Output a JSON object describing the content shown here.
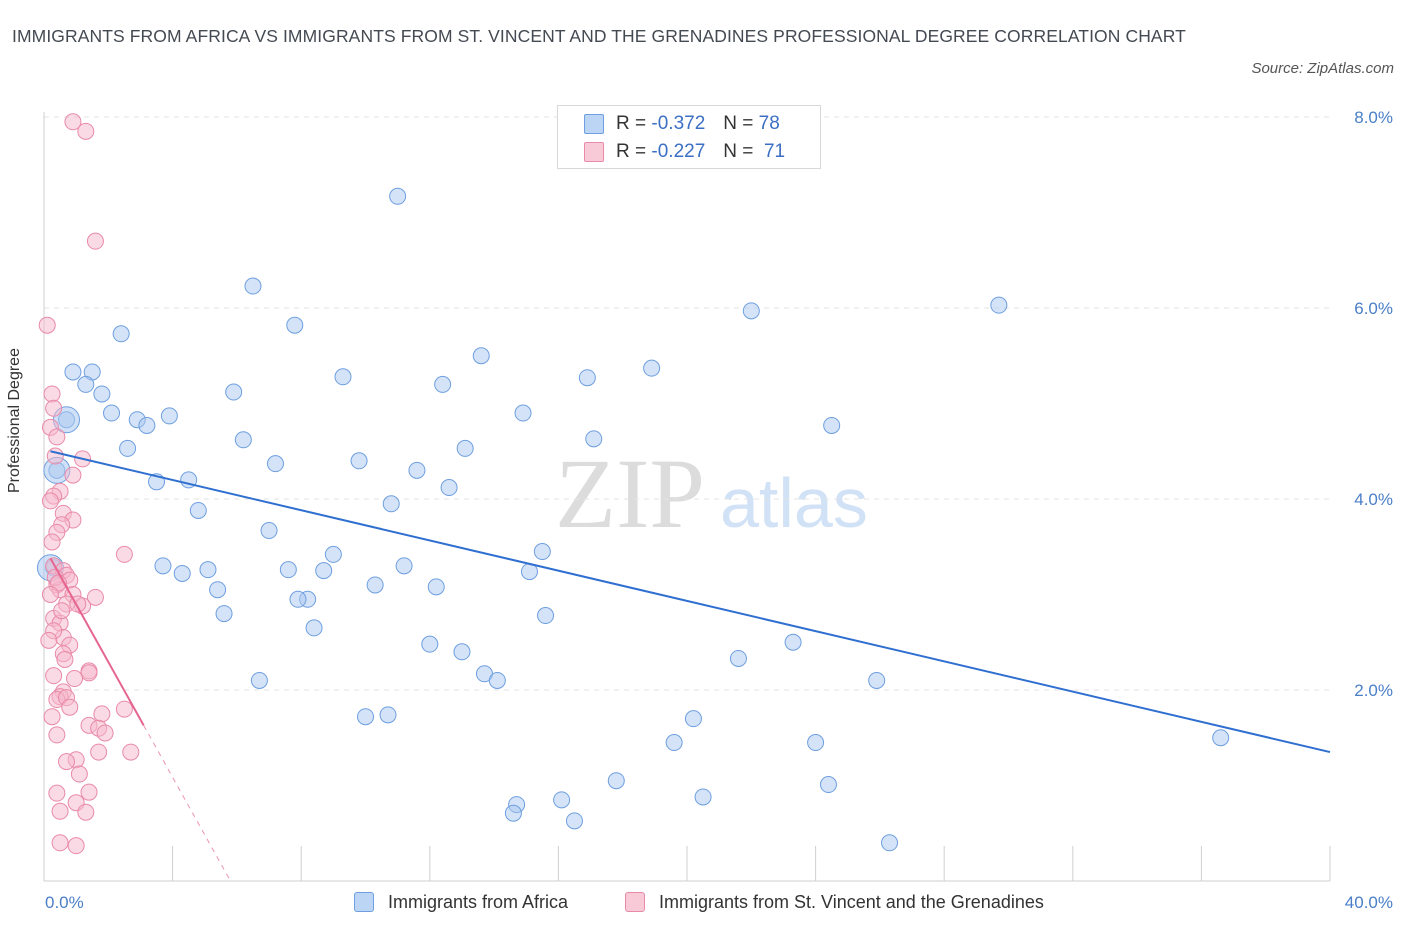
{
  "title": "IMMIGRANTS FROM AFRICA VS IMMIGRANTS FROM ST. VINCENT AND THE GRENADINES PROFESSIONAL DEGREE CORRELATION CHART",
  "source": "Source: ZipAtlas.com",
  "watermark": {
    "zip": "ZIP",
    "atlas": "atlas"
  },
  "stats": [
    {
      "r_label": "R =",
      "r_value": "-0.372",
      "n_label": "N =",
      "n_value": "78",
      "color": "#a9c8f0",
      "stroke": "#6e9fe0"
    },
    {
      "r_label": "R =",
      "r_value": "-0.227",
      "n_label": "N =",
      "n_value": "71",
      "color": "#f5b8cb",
      "stroke": "#e98aa8"
    }
  ],
  "chart_data": {
    "type": "scatter",
    "ylabel": "Professional Degree",
    "xlim": [
      0,
      40
    ],
    "ylim": [
      0,
      8
    ],
    "y_ticks": [
      {
        "value": 2,
        "label": "2.0%"
      },
      {
        "value": 4,
        "label": "4.0%"
      },
      {
        "value": 6,
        "label": "6.0%"
      },
      {
        "value": 8,
        "label": "8.0%"
      }
    ],
    "x_tick_labels": [
      {
        "value": 0,
        "label": "0.0%"
      },
      {
        "value": 40,
        "label": "40.0%"
      }
    ],
    "x_minor_ticks": [
      0,
      4,
      8,
      12,
      16,
      20,
      24,
      28,
      32,
      36,
      40
    ],
    "grid": true,
    "legend_position": "bottom-center",
    "series": [
      {
        "name": "Immigrants from Africa",
        "color": "#a9c8f0",
        "stroke": "#6e9fe0",
        "line_color": "#2f6fd0",
        "trend": {
          "x": [
            0.2,
            40.0
          ],
          "y": [
            4.5,
            1.35
          ],
          "dashed_to": null
        },
        "points": [
          [
            11.0,
            7.17
          ],
          [
            6.5,
            6.23
          ],
          [
            2.4,
            5.73
          ],
          [
            7.8,
            5.82
          ],
          [
            22.0,
            5.97
          ],
          [
            29.7,
            6.03
          ],
          [
            0.9,
            5.33
          ],
          [
            1.5,
            5.33
          ],
          [
            1.3,
            5.2
          ],
          [
            9.3,
            5.28
          ],
          [
            5.9,
            5.12
          ],
          [
            12.4,
            5.2
          ],
          [
            13.6,
            5.5
          ],
          [
            16.9,
            5.27
          ],
          [
            18.9,
            5.37
          ],
          [
            1.8,
            5.1
          ],
          [
            2.1,
            4.9
          ],
          [
            2.9,
            4.83
          ],
          [
            3.2,
            4.77
          ],
          [
            3.9,
            4.87
          ],
          [
            14.9,
            4.9
          ],
          [
            24.5,
            4.77
          ],
          [
            0.7,
            4.83
          ],
          [
            2.6,
            4.53
          ],
          [
            6.2,
            4.62
          ],
          [
            17.1,
            4.63
          ],
          [
            13.1,
            4.53
          ],
          [
            0.4,
            4.3
          ],
          [
            3.5,
            4.18
          ],
          [
            4.5,
            4.2
          ],
          [
            7.2,
            4.37
          ],
          [
            9.8,
            4.4
          ],
          [
            11.6,
            4.3
          ],
          [
            12.6,
            4.12
          ],
          [
            10.8,
            3.95
          ],
          [
            4.8,
            3.88
          ],
          [
            7.0,
            3.67
          ],
          [
            15.5,
            3.45
          ],
          [
            9.0,
            3.42
          ],
          [
            0.3,
            3.28
          ],
          [
            3.7,
            3.3
          ],
          [
            4.3,
            3.22
          ],
          [
            5.1,
            3.26
          ],
          [
            7.6,
            3.26
          ],
          [
            8.7,
            3.25
          ],
          [
            11.2,
            3.3
          ],
          [
            15.1,
            3.24
          ],
          [
            5.4,
            3.05
          ],
          [
            10.3,
            3.1
          ],
          [
            12.2,
            3.08
          ],
          [
            8.2,
            2.95
          ],
          [
            7.9,
            2.95
          ],
          [
            5.6,
            2.8
          ],
          [
            15.6,
            2.78
          ],
          [
            8.4,
            2.65
          ],
          [
            12.0,
            2.48
          ],
          [
            13.0,
            2.4
          ],
          [
            23.3,
            2.5
          ],
          [
            21.6,
            2.33
          ],
          [
            6.7,
            2.1
          ],
          [
            13.7,
            2.17
          ],
          [
            14.1,
            2.1
          ],
          [
            25.9,
            2.1
          ],
          [
            10.0,
            1.72
          ],
          [
            10.7,
            1.74
          ],
          [
            20.2,
            1.7
          ],
          [
            19.6,
            1.45
          ],
          [
            24.0,
            1.45
          ],
          [
            36.6,
            1.5
          ],
          [
            17.8,
            1.05
          ],
          [
            24.4,
            1.01
          ],
          [
            20.5,
            0.88
          ],
          [
            16.1,
            0.85
          ],
          [
            14.7,
            0.8
          ],
          [
            14.6,
            0.71
          ],
          [
            16.5,
            0.63
          ],
          [
            26.3,
            0.4
          ]
        ],
        "big_points": [
          [
            0.2,
            3.28
          ],
          [
            0.7,
            4.83
          ],
          [
            0.4,
            4.3
          ]
        ]
      },
      {
        "name": "Immigrants from St. Vincent and the Grenadines",
        "color": "#f5b8cb",
        "stroke": "#e98aa8",
        "line_color": "#e56590",
        "trend": {
          "x": [
            0.2,
            3.1
          ],
          "y": [
            3.38,
            1.63
          ],
          "dashed_to": {
            "x": 5.8,
            "y": 0.0
          }
        },
        "points": [
          [
            0.9,
            7.95
          ],
          [
            1.3,
            7.85
          ],
          [
            1.6,
            6.7
          ],
          [
            0.1,
            5.82
          ],
          [
            0.25,
            5.1
          ],
          [
            0.3,
            4.95
          ],
          [
            0.2,
            4.75
          ],
          [
            0.4,
            4.65
          ],
          [
            0.35,
            4.45
          ],
          [
            1.2,
            4.42
          ],
          [
            0.9,
            4.25
          ],
          [
            0.5,
            4.08
          ],
          [
            0.3,
            4.03
          ],
          [
            0.2,
            3.98
          ],
          [
            0.6,
            3.85
          ],
          [
            0.9,
            3.78
          ],
          [
            0.55,
            3.73
          ],
          [
            0.4,
            3.65
          ],
          [
            0.25,
            3.55
          ],
          [
            2.5,
            3.42
          ],
          [
            0.3,
            3.3
          ],
          [
            0.6,
            3.25
          ],
          [
            0.7,
            3.2
          ],
          [
            0.8,
            3.15
          ],
          [
            0.4,
            3.1
          ],
          [
            0.5,
            3.05
          ],
          [
            0.9,
            3.0
          ],
          [
            1.6,
            2.97
          ],
          [
            0.7,
            2.9
          ],
          [
            1.2,
            2.88
          ],
          [
            0.3,
            2.75
          ],
          [
            0.5,
            2.7
          ],
          [
            0.6,
            2.55
          ],
          [
            0.8,
            2.47
          ],
          [
            0.6,
            2.38
          ],
          [
            1.4,
            2.2
          ],
          [
            1.4,
            2.18
          ],
          [
            0.3,
            2.15
          ],
          [
            0.6,
            1.98
          ],
          [
            0.5,
            1.93
          ],
          [
            0.4,
            1.9
          ],
          [
            0.7,
            1.92
          ],
          [
            2.5,
            1.8
          ],
          [
            0.8,
            1.82
          ],
          [
            1.8,
            1.75
          ],
          [
            1.4,
            1.63
          ],
          [
            1.7,
            1.6
          ],
          [
            1.9,
            1.55
          ],
          [
            0.4,
            1.53
          ],
          [
            1.7,
            1.35
          ],
          [
            2.7,
            1.35
          ],
          [
            1.0,
            1.27
          ],
          [
            0.7,
            1.25
          ],
          [
            1.1,
            1.12
          ],
          [
            1.4,
            0.93
          ],
          [
            0.4,
            0.92
          ],
          [
            1.0,
            0.82
          ],
          [
            0.5,
            0.73
          ],
          [
            1.3,
            0.72
          ],
          [
            0.5,
            0.4
          ],
          [
            1.0,
            0.37
          ],
          [
            0.35,
            3.18
          ],
          [
            0.45,
            3.12
          ],
          [
            0.2,
            3.0
          ],
          [
            0.55,
            2.83
          ],
          [
            1.05,
            2.9
          ],
          [
            0.3,
            2.62
          ],
          [
            0.15,
            2.52
          ],
          [
            0.65,
            2.32
          ],
          [
            0.95,
            2.12
          ],
          [
            0.25,
            1.72
          ]
        ],
        "big_points": []
      }
    ]
  }
}
